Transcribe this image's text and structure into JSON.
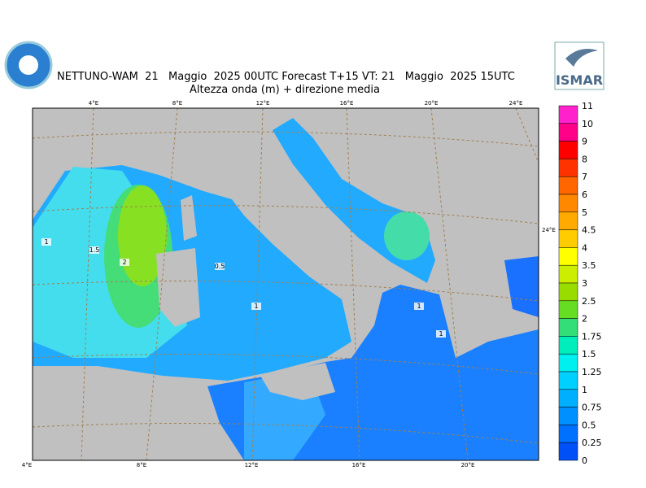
{
  "header": {
    "title": "NETTUNO-WAM  21   Maggio  2025 00UTC Forecast T+15 VT: 21   Maggio  2025 15UTC",
    "subtitle": "Altezza onda (m) + direzione media",
    "logo_text": "ISMAR"
  },
  "map": {
    "top_labels": [
      "4°E",
      "8°E",
      "12°E",
      "16°E",
      "20°E",
      "24°E"
    ],
    "bottom_labels": [
      "4°E",
      "8°E",
      "12°E",
      "16°E",
      "20°E"
    ],
    "right_labels": [
      "24°E"
    ],
    "contour_labels": [
      "1",
      "1.5",
      "2",
      "0.5",
      "1",
      "1",
      "1"
    ]
  },
  "legend": {
    "labels": [
      "11",
      "10",
      "9",
      "8",
      "7",
      "6",
      "5",
      "4.5",
      "4",
      "3.5",
      "3",
      "2.5",
      "2",
      "1.75",
      "1.5",
      "1.25",
      "1",
      "0.75",
      "0.5",
      "0.25",
      "0"
    ],
    "colors": [
      "#ff22cc",
      "#ff0088",
      "#ff0000",
      "#ff3300",
      "#ff6600",
      "#ff8800",
      "#ffaa00",
      "#ffcc00",
      "#ffff00",
      "#ccee00",
      "#99dd00",
      "#66dd22",
      "#33dd77",
      "#00eebb",
      "#00f0f0",
      "#00d0ff",
      "#00b0ff",
      "#0090ff",
      "#0070ff",
      "#0050f8"
    ]
  }
}
